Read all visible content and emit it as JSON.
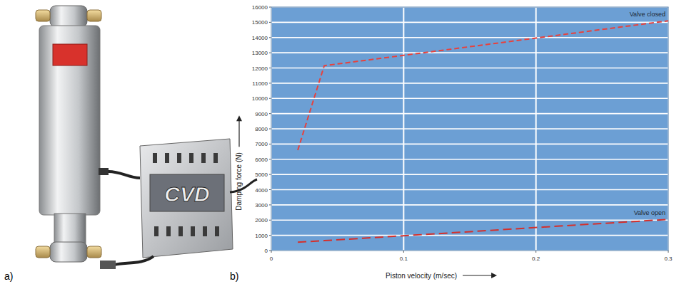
{
  "chart_data": {
    "type": "line",
    "x_label": "Piston velocity (m/sec)",
    "y_label": "Damping force (N)",
    "x": [
      0.02,
      0.04,
      0.3
    ],
    "series": [
      {
        "name": "Valve closed",
        "color": "#e8413c",
        "line_style": "dashed",
        "values": [
          6600,
          12150,
          15100
        ]
      },
      {
        "name": "Valve open",
        "color": "#d4302c",
        "line_style": "dashed",
        "values": [
          550,
          650,
          2050
        ]
      }
    ],
    "xlim": [
      0,
      0.3
    ],
    "xticks": [
      0,
      0.1,
      0.2,
      0.3
    ],
    "ylim": [
      0,
      16000
    ],
    "yticks": [
      0,
      1000,
      2000,
      3000,
      4000,
      5000,
      6000,
      7000,
      8000,
      9000,
      10000,
      11000,
      12000,
      13000,
      14000,
      15000,
      16000
    ],
    "grid": true
  },
  "figure": {
    "panel_labels": [
      "a)",
      "b)"
    ],
    "device_label": "CVD"
  }
}
